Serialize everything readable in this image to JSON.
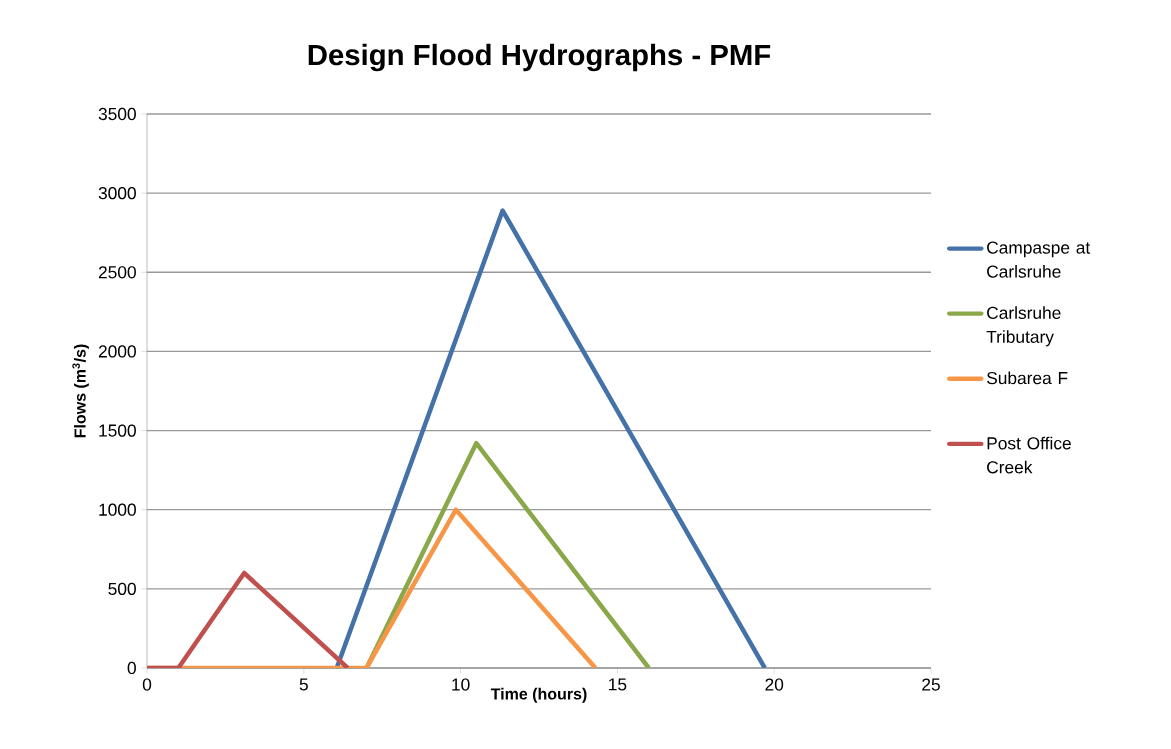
{
  "chart_data": {
    "type": "line",
    "title": "Design Flood Hydrographs - PMF",
    "xlabel": "Time (hours)",
    "ylabel": "Flows (m$^{3}$/s)",
    "series": [
      {
        "name": "Campaspe at Carlsruhe",
        "color": "#4472a8",
        "x": [
          6.05,
          11.34,
          19.7
        ],
        "values": [
          0,
          2890,
          0
        ]
      },
      {
        "name": "Carlsruhe Tributary",
        "color": "#8aa84a",
        "x": [
          7.0,
          10.5,
          16.0
        ],
        "values": [
          0,
          1420,
          0
        ]
      },
      {
        "name": "Subarea F",
        "color": "#f79646",
        "x": [
          0,
          7.0,
          9.85,
          14.3
        ],
        "values": [
          0,
          0,
          1000,
          0
        ]
      },
      {
        "name": "Post Office Creek",
        "color": "#c0504d",
        "x": [
          0,
          1.0,
          3.1,
          6.4
        ],
        "values": [
          0,
          0,
          600,
          0
        ]
      }
    ],
    "xlim": [
      0,
      25
    ],
    "xticks": [
      0,
      5,
      10,
      15,
      20,
      25
    ],
    "ylim": [
      0,
      3500
    ],
    "yticks": [
      0,
      500,
      1000,
      1500,
      2000,
      2500,
      3000,
      3500
    ],
    "grid": "y",
    "legend": "right",
    "marker": "none",
    "line_style": "solid"
  }
}
